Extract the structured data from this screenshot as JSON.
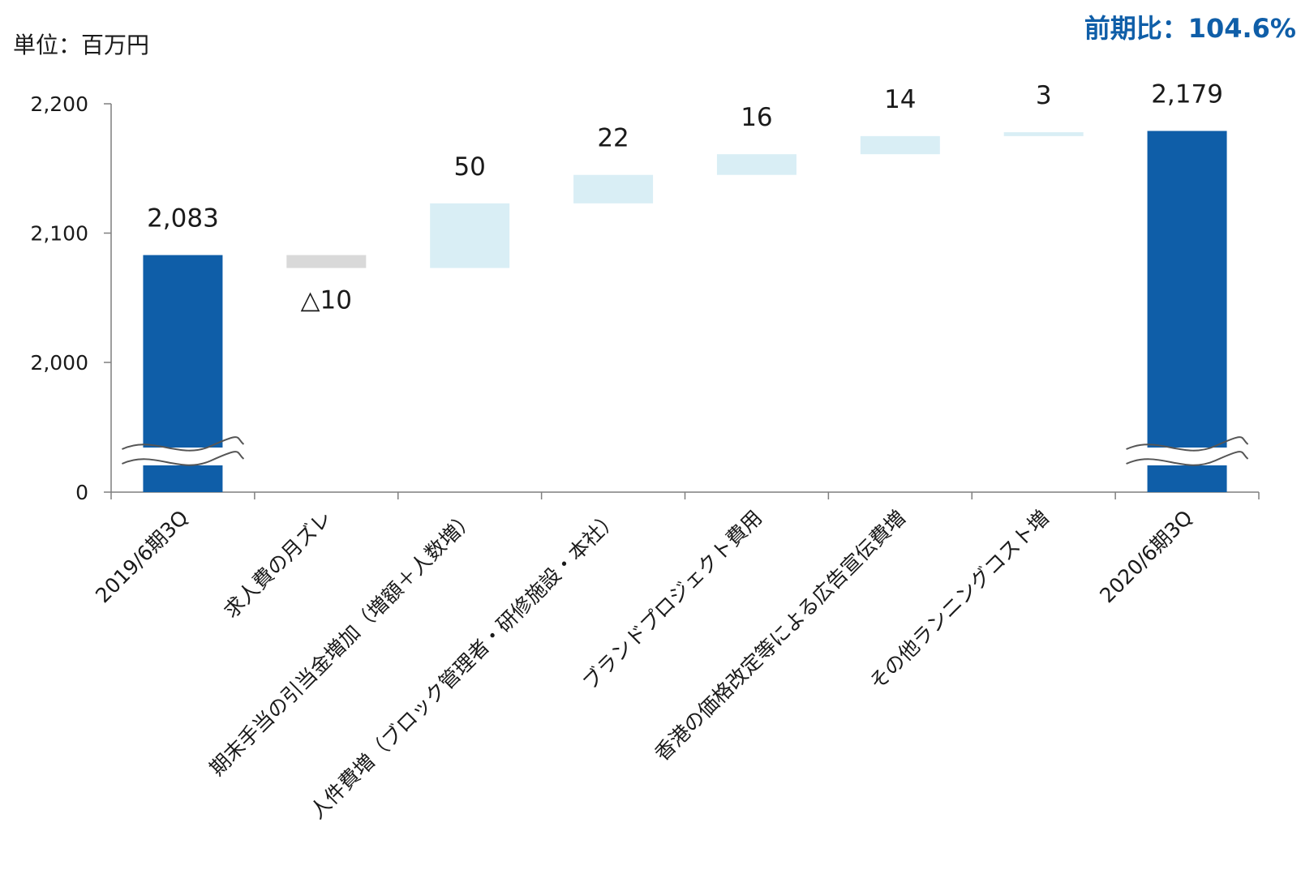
{
  "header": {
    "unit_label": "単位：百万円",
    "ratio_label": "前期比：104.6%"
  },
  "colors": {
    "total": "#0f5ea8",
    "increase": "#d9eef5",
    "decrease": "#d9d9d9",
    "axis": "#7f7f7f",
    "ratio_text": "#0f5ea8"
  },
  "chart_data": {
    "type": "bar",
    "subtype": "waterfall",
    "title": "",
    "xlabel": "",
    "ylabel": "",
    "y_axis_break": true,
    "y_ticks": [
      "0",
      "2,000",
      "2,100",
      "2,200"
    ],
    "ylim": [
      1970,
      2200
    ],
    "categories": [
      "2019/6期3Q",
      "求人費の月ズレ",
      "期末手当の引当金増加（増額＋人数増）",
      "人件費増（ブロック管理者・研修施設・本社）",
      "ブランドプロジェクト費用",
      "香港の価格改定等による広告宣伝費増",
      "その他ランニングコスト増",
      "2020/6期3Q"
    ],
    "bars": [
      {
        "kind": "total",
        "value": 2083,
        "label": "2,083"
      },
      {
        "kind": "decrease",
        "value": -10,
        "label": "△10"
      },
      {
        "kind": "increase",
        "value": 50,
        "label": "50"
      },
      {
        "kind": "increase",
        "value": 22,
        "label": "22"
      },
      {
        "kind": "increase",
        "value": 16,
        "label": "16"
      },
      {
        "kind": "increase",
        "value": 14,
        "label": "14"
      },
      {
        "kind": "increase",
        "value": 3,
        "label": "3"
      },
      {
        "kind": "total",
        "value": 2179,
        "label": "2,179"
      }
    ]
  }
}
